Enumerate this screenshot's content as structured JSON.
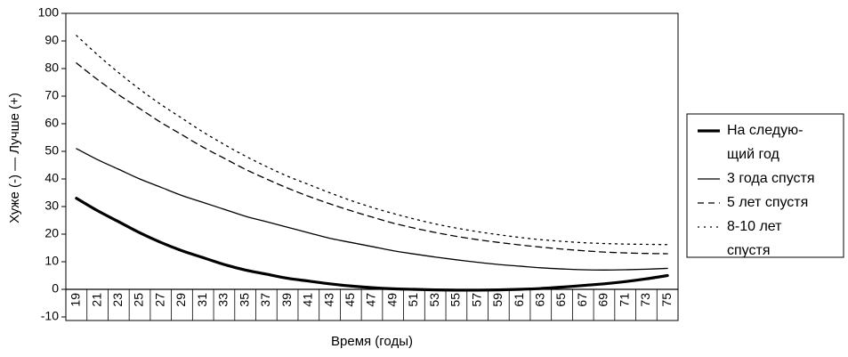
{
  "chart_data": {
    "type": "line",
    "xlabel": "Время (годы)",
    "ylabel": "Хуже (-) — Лучше (+)",
    "ylim": [
      -10,
      100
    ],
    "yticks": [
      -10,
      0,
      10,
      20,
      30,
      40,
      50,
      60,
      70,
      80,
      90,
      100
    ],
    "x": [
      19,
      21,
      23,
      25,
      27,
      29,
      31,
      33,
      35,
      37,
      39,
      41,
      43,
      45,
      47,
      49,
      51,
      53,
      55,
      57,
      59,
      61,
      63,
      65,
      67,
      69,
      71,
      73,
      75
    ],
    "grid": false,
    "legend_position": "right",
    "series": [
      {
        "name": "На следую-щий год",
        "legend_lines": [
          "На следую-",
          "щий год"
        ],
        "style": "solid-thick",
        "values": [
          33,
          28.5,
          24.5,
          20.5,
          17,
          14,
          11.5,
          9,
          7,
          5.5,
          4,
          3,
          2,
          1.2,
          0.6,
          0.2,
          0,
          -0.2,
          -0.3,
          -0.3,
          -0.2,
          0,
          0.3,
          0.8,
          1.4,
          2,
          2.8,
          3.8,
          5
        ]
      },
      {
        "name": "3 года спустя",
        "legend_lines": [
          "3 года спустя"
        ],
        "style": "solid",
        "values": [
          51,
          47,
          43.5,
          40,
          37,
          34,
          31.5,
          29,
          26.5,
          24.5,
          22.5,
          20.5,
          18.5,
          17,
          15.5,
          14,
          12.8,
          11.7,
          10.7,
          9.8,
          9,
          8.4,
          7.8,
          7.4,
          7.1,
          7,
          7.1,
          7.3,
          7.6
        ]
      },
      {
        "name": "5 лет спустя",
        "legend_lines": [
          "5 лет спустя"
        ],
        "style": "dashed",
        "values": [
          82,
          76,
          70.5,
          65.5,
          60.5,
          56,
          51.5,
          47.5,
          43.5,
          40,
          36.7,
          33.7,
          31,
          28.5,
          26.2,
          24,
          22.2,
          20.6,
          19.2,
          18,
          17,
          16.1,
          15.3,
          14.6,
          14,
          13.5,
          13.2,
          13,
          12.9
        ]
      },
      {
        "name": "8-10 лет спустя",
        "legend_lines": [
          "8-10 лет",
          "спустя"
        ],
        "style": "dotted",
        "values": [
          92,
          85,
          78.5,
          72.5,
          67,
          62,
          57,
          52.5,
          48.3,
          44.5,
          41,
          38,
          35,
          32.2,
          29.7,
          27.5,
          25.5,
          23.7,
          22.2,
          20.9,
          19.8,
          18.8,
          18,
          17.4,
          16.9,
          16.6,
          16.4,
          16.3,
          16.2
        ]
      }
    ]
  }
}
